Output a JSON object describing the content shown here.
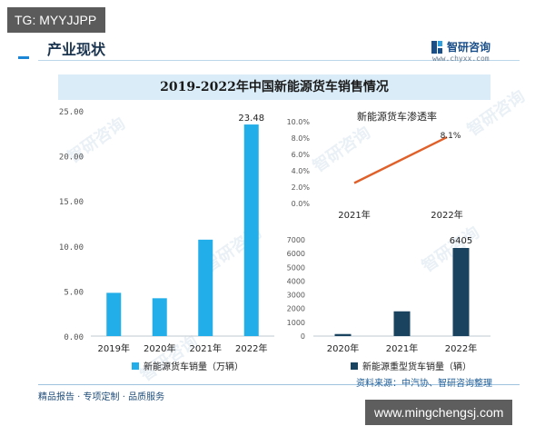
{
  "overlay_top": "TG: MYYJJPP",
  "header": {
    "section_title": "产业现状",
    "brand_name": "智研咨询",
    "brand_url": "www.chyxx.com"
  },
  "main_title": "2019-2022年中国新能源货车销售情况",
  "footer": {
    "left_text": "精品报告 · 专项定制 · 品质服务",
    "source_text": "资料来源：中汽协、智研咨询整理"
  },
  "overlay_bottom": "www.mingchengsj.com",
  "watermark_text": "智研咨询",
  "colors": {
    "main_bar": "#22aee8",
    "line": "#e0602a",
    "dark_bar": "#19435f"
  },
  "chart_data": [
    {
      "type": "bar",
      "categories": [
        "2019年",
        "2020年",
        "2021年",
        "2022年"
      ],
      "series": [
        {
          "name": "新能源货车销量（万辆）",
          "values": [
            4.8,
            4.2,
            10.7,
            23.48
          ]
        }
      ],
      "data_labels": {
        "3": "23.48"
      },
      "ylim": [
        0,
        25
      ],
      "y_ticks": [
        "0.00",
        "5.00",
        "10.00",
        "15.00",
        "20.00",
        "25.00"
      ],
      "legend_position": "bottom"
    },
    {
      "type": "line",
      "title": "新能源货车渗透率",
      "categories": [
        "2021年",
        "2022年"
      ],
      "series": [
        {
          "values": [
            2.5,
            8.1
          ]
        }
      ],
      "data_labels": {
        "1": "8.1%"
      },
      "ylim": [
        0,
        10
      ],
      "y_ticks": [
        "0.0%",
        "2.0%",
        "4.0%",
        "6.0%",
        "8.0%",
        "10.0%"
      ]
    },
    {
      "type": "bar",
      "categories": [
        "2020年",
        "2021年",
        "2022年"
      ],
      "series": [
        {
          "name": "新能源重型货车销量（辆）",
          "values": [
            150,
            1800,
            6405
          ]
        }
      ],
      "data_labels": {
        "2": "6405"
      },
      "ylim": [
        0,
        7000
      ],
      "y_ticks": [
        "0",
        "1000",
        "2000",
        "3000",
        "4000",
        "5000",
        "6000",
        "7000"
      ],
      "legend_position": "bottom"
    }
  ]
}
